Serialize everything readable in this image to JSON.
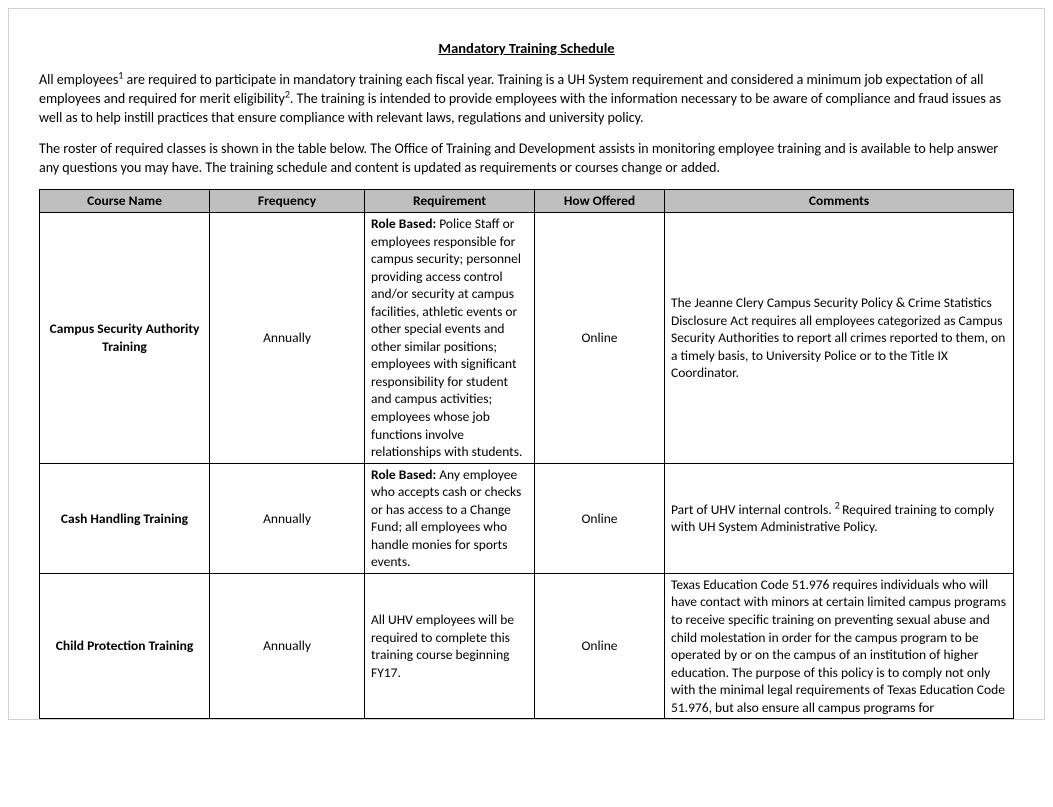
{
  "title": "Mandatory Training Schedule",
  "intro1_a": "All employees",
  "intro1_sup1": "1",
  "intro1_b": " are required to participate in mandatory training each fiscal year.  Training is a UH System requirement and considered a minimum job expectation of all employees and required for merit eligibility",
  "intro1_sup2": "2",
  "intro1_c": ".  The training is intended to provide employees with the information necessary to be aware of compliance and fraud issues as well as to help instill practices that ensure compliance with relevant laws, regulations and university policy.",
  "intro2": "The roster of required classes is shown in the table below.  The Office of Training and Development assists in monitoring employee training and is available to help answer any questions you may have.  The training schedule and content is updated as requirements or courses change or added.",
  "columns": {
    "c0": "Course Name",
    "c1": "Frequency",
    "c2": "Requirement",
    "c3": "How Offered",
    "c4": "Comments"
  },
  "col_widths": {
    "c0": "170px",
    "c1": "155px",
    "c2": "170px",
    "c3": "130px",
    "c4": "auto"
  },
  "rows": [
    {
      "course": "Campus Security Authority Training",
      "frequency": "Annually",
      "req_lead": "Role Based:",
      "req_body": "  Police Staff or employees responsible for campus security; personnel providing access control and/or security at campus facilities, athletic events or other special events and other similar positions; employees with significant responsibility for student and campus activities; employees whose job functions involve relationships with students.",
      "offered": "Online",
      "comments_a": "The Jeanne Clery Campus Security Policy & Crime Statistics Disclosure Act requires all employees categorized as Campus Security Authorities to report all crimes reported to them, on a timely basis, to University Police or to the Title IX Coordinator.",
      "comments_class": "comments"
    },
    {
      "course": "Cash Handling Training",
      "frequency": "Annually",
      "req_lead": "Role Based:",
      "req_body": "  Any employee who accepts cash or checks or has access to a Change Fund; all employees who handle monies for sports events.",
      "offered": "Online",
      "comments_a": "Part of UHV internal controls. ",
      "comments_sup": "2 ",
      "comments_b": "Required training to comply with UH System Administrative Policy.",
      "comments_class": "comments"
    },
    {
      "course": "Child Protection Training",
      "frequency": "Annually",
      "req_lead": "",
      "req_body": "All UHV employees will be required to complete this training course beginning FY17.",
      "offered": "Online",
      "comments_a": "Texas Education Code 51.976 requires individuals who will have contact with minors at certain limited campus programs to receive specific training on preventing sexual abuse and child molestation in order for the campus program to be operated by or on the campus of an institution of higher education.  The purpose of this policy is to comply not only with the minimal legal requirements of Texas Education Code 51.976, but also ensure all campus programs for",
      "comments_class": "comments-top"
    }
  ]
}
